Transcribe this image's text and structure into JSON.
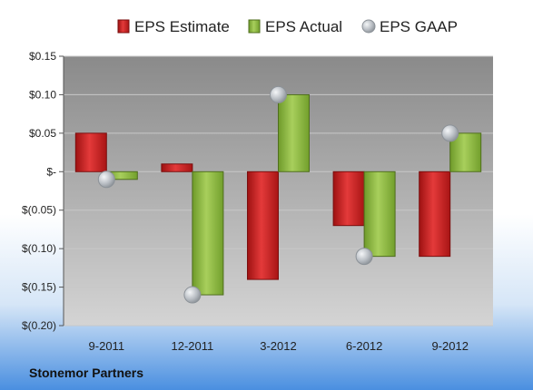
{
  "company": "Stonemor Partners",
  "colors": {
    "estimate": "#cc1f1f",
    "actual": "#8dbb3c",
    "gaap": "#b9bec4"
  },
  "chart_data": {
    "type": "bar",
    "categories": [
      "9-2011",
      "12-2011",
      "3-2012",
      "6-2012",
      "9-2012"
    ],
    "series": [
      {
        "name": "EPS Estimate",
        "values": [
          0.05,
          0.01,
          -0.14,
          -0.07,
          -0.11
        ]
      },
      {
        "name": "EPS Actual",
        "values": [
          -0.01,
          -0.16,
          0.1,
          -0.11,
          0.05
        ]
      },
      {
        "name": "EPS GAAP",
        "values": [
          -0.01,
          -0.16,
          0.1,
          -0.11,
          0.05
        ]
      }
    ],
    "yticks": [
      "$0.15",
      "$0.10",
      "$0.05",
      "$-",
      "$(0.05)",
      "$(0.10)",
      "$(0.15)",
      "$(0.20)"
    ],
    "ylim": [
      -0.2,
      0.15
    ],
    "grid": true,
    "legend": "top"
  }
}
